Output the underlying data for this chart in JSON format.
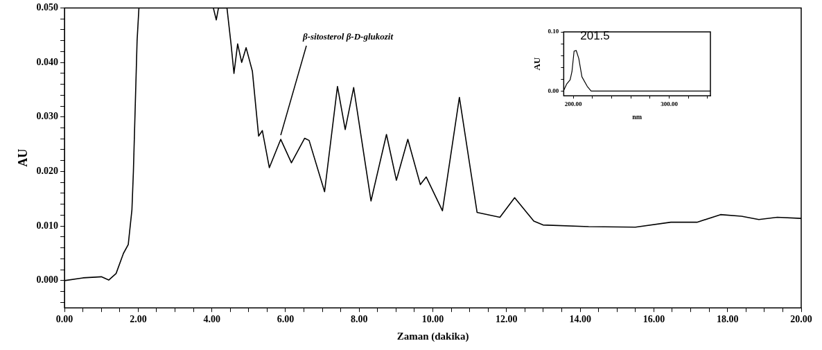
{
  "chart_data": [
    {
      "type": "line",
      "xlabel": "Zaman (dakika)",
      "ylabel": "AU",
      "annotations": [
        {
          "text": "β-sitosterol β-D-glukozit",
          "x": 5.87,
          "y": 0.0259
        }
      ],
      "series": [
        {
          "color": "#000000",
          "x": [
            0,
            0.5,
            1.0,
            1.2,
            1.4,
            1.6,
            1.73,
            1.83,
            1.87,
            1.97,
            2.02,
            3.0,
            4.04,
            4.12,
            4.18,
            4.41,
            4.52,
            4.6,
            4.7,
            4.81,
            4.93,
            5.1,
            5.27,
            5.37,
            5.56,
            5.87,
            6.16,
            6.52,
            6.64,
            7.06,
            7.41,
            7.62,
            7.85,
            8.32,
            8.74,
            9.01,
            9.32,
            9.66,
            9.82,
            10.26,
            10.72,
            11.2,
            11.82,
            12.22,
            12.74,
            12.99,
            14.23,
            15.5,
            16.46,
            17.17,
            17.81,
            18.38,
            18.85,
            19.35,
            20.0
          ],
          "values": [
            0.0,
            0.0005,
            0.0007,
            0.0001,
            0.0013,
            0.005,
            0.0066,
            0.013,
            0.02,
            0.044,
            0.05,
            null,
            0.05,
            0.0478,
            0.05,
            0.05,
            0.0434,
            0.038,
            0.0434,
            0.04,
            0.0427,
            0.0384,
            0.0265,
            0.0275,
            0.0207,
            0.0259,
            0.0216,
            0.0261,
            0.0257,
            0.0163,
            0.0356,
            0.0277,
            0.0354,
            0.0146,
            0.0268,
            0.0184,
            0.0259,
            0.0176,
            0.019,
            0.0128,
            0.0336,
            0.0125,
            0.0116,
            0.0152,
            0.0109,
            0.0102,
            0.0099,
            0.0098,
            0.0107,
            0.0107,
            0.0121,
            0.0118,
            0.0112,
            0.0116,
            0.0114
          ]
        }
      ],
      "xlim": [
        0,
        20
      ],
      "xticks": [
        {
          "value": 0,
          "label": "0.00"
        },
        {
          "value": 0.5,
          "label": null
        },
        {
          "value": 1,
          "label": null
        },
        {
          "value": 1.5,
          "label": null
        },
        {
          "value": 2,
          "label": "2.00"
        },
        {
          "value": 2.5,
          "label": null
        },
        {
          "value": 3,
          "label": null
        },
        {
          "value": 3.5,
          "label": null
        },
        {
          "value": 4,
          "label": "4.00"
        },
        {
          "value": 4.5,
          "label": null
        },
        {
          "value": 5,
          "label": null
        },
        {
          "value": 5.5,
          "label": null
        },
        {
          "value": 6,
          "label": "6.00"
        },
        {
          "value": 6.5,
          "label": null
        },
        {
          "value": 7,
          "label": null
        },
        {
          "value": 7.5,
          "label": null
        },
        {
          "value": 8,
          "label": "8.00"
        },
        {
          "value": 8.5,
          "label": null
        },
        {
          "value": 9,
          "label": null
        },
        {
          "value": 9.5,
          "label": null
        },
        {
          "value": 10,
          "label": "10.00"
        },
        {
          "value": 10.5,
          "label": null
        },
        {
          "value": 11,
          "label": null
        },
        {
          "value": 11.5,
          "label": null
        },
        {
          "value": 12,
          "label": "12.00"
        },
        {
          "value": 12.5,
          "label": null
        },
        {
          "value": 13,
          "label": null
        },
        {
          "value": 13.5,
          "label": null
        },
        {
          "value": 14,
          "label": "14.00"
        },
        {
          "value": 14.5,
          "label": null
        },
        {
          "value": 15,
          "label": null
        },
        {
          "value": 15.5,
          "label": null
        },
        {
          "value": 16,
          "label": "16.00"
        },
        {
          "value": 16.5,
          "label": null
        },
        {
          "value": 17,
          "label": null
        },
        {
          "value": 17.5,
          "label": null
        },
        {
          "value": 18,
          "label": "18.00"
        },
        {
          "value": 18.5,
          "label": null
        },
        {
          "value": 19,
          "label": null
        },
        {
          "value": 19.5,
          "label": null
        },
        {
          "value": 20,
          "label": "20.00"
        }
      ],
      "ylim": [
        -0.005,
        0.05
      ],
      "yticks": [
        {
          "value": -0.004,
          "label": null
        },
        {
          "value": -0.002,
          "label": null
        },
        {
          "value": 0,
          "label": "0.000"
        },
        {
          "value": 0.002,
          "label": null
        },
        {
          "value": 0.004,
          "label": null
        },
        {
          "value": 0.006,
          "label": null
        },
        {
          "value": 0.008,
          "label": null
        },
        {
          "value": 0.01,
          "label": "0.010"
        },
        {
          "value": 0.012,
          "label": null
        },
        {
          "value": 0.014,
          "label": null
        },
        {
          "value": 0.016,
          "label": null
        },
        {
          "value": 0.018,
          "label": null
        },
        {
          "value": 0.02,
          "label": "0.020"
        },
        {
          "value": 0.022,
          "label": null
        },
        {
          "value": 0.024,
          "label": null
        },
        {
          "value": 0.026,
          "label": null
        },
        {
          "value": 0.028,
          "label": null
        },
        {
          "value": 0.03,
          "label": "0.030"
        },
        {
          "value": 0.032,
          "label": null
        },
        {
          "value": 0.034,
          "label": null
        },
        {
          "value": 0.036,
          "label": null
        },
        {
          "value": 0.038,
          "label": null
        },
        {
          "value": 0.04,
          "label": "0.040"
        },
        {
          "value": 0.042,
          "label": null
        },
        {
          "value": 0.044,
          "label": null
        },
        {
          "value": 0.046,
          "label": null
        },
        {
          "value": 0.048,
          "label": null
        },
        {
          "value": 0.05,
          "label": "0.050"
        }
      ],
      "grid": false,
      "legend": false,
      "marker": "none",
      "line_style": "solid"
    },
    {
      "type": "line",
      "xlabel": "nm",
      "ylabel": "AU",
      "annotations": [
        {
          "text": "201.5",
          "x": 201.5,
          "y": 0.0686
        }
      ],
      "series": [
        {
          "color": "#000000",
          "x": [
            190,
            193,
            196.7,
            198.6,
            200.8,
            203,
            205.7,
            209,
            214.5,
            218.6,
            343
          ],
          "values": [
            0.001,
            0.0116,
            0.019,
            0.033,
            0.0675,
            0.0686,
            0.055,
            0.024,
            0.008,
            0.0,
            0.0
          ]
        }
      ],
      "xlim": [
        190,
        343
      ],
      "xticks": [
        {
          "value": 200,
          "label": "200.00"
        },
        {
          "value": 220,
          "label": null
        },
        {
          "value": 240,
          "label": null
        },
        {
          "value": 260,
          "label": null
        },
        {
          "value": 280,
          "label": null
        },
        {
          "value": 300,
          "label": "300.00"
        },
        {
          "value": 320,
          "label": null
        },
        {
          "value": 340,
          "label": null
        }
      ],
      "ylim": [
        -0.008,
        0.1
      ],
      "yticks": [
        {
          "value": 0,
          "label": "0.00"
        },
        {
          "value": 0.02,
          "label": null
        },
        {
          "value": 0.04,
          "label": null
        },
        {
          "value": 0.06,
          "label": null
        },
        {
          "value": 0.08,
          "label": null
        },
        {
          "value": 0.1,
          "label": "0.10"
        }
      ],
      "grid": false,
      "legend": false,
      "marker": "none",
      "line_style": "solid"
    }
  ]
}
